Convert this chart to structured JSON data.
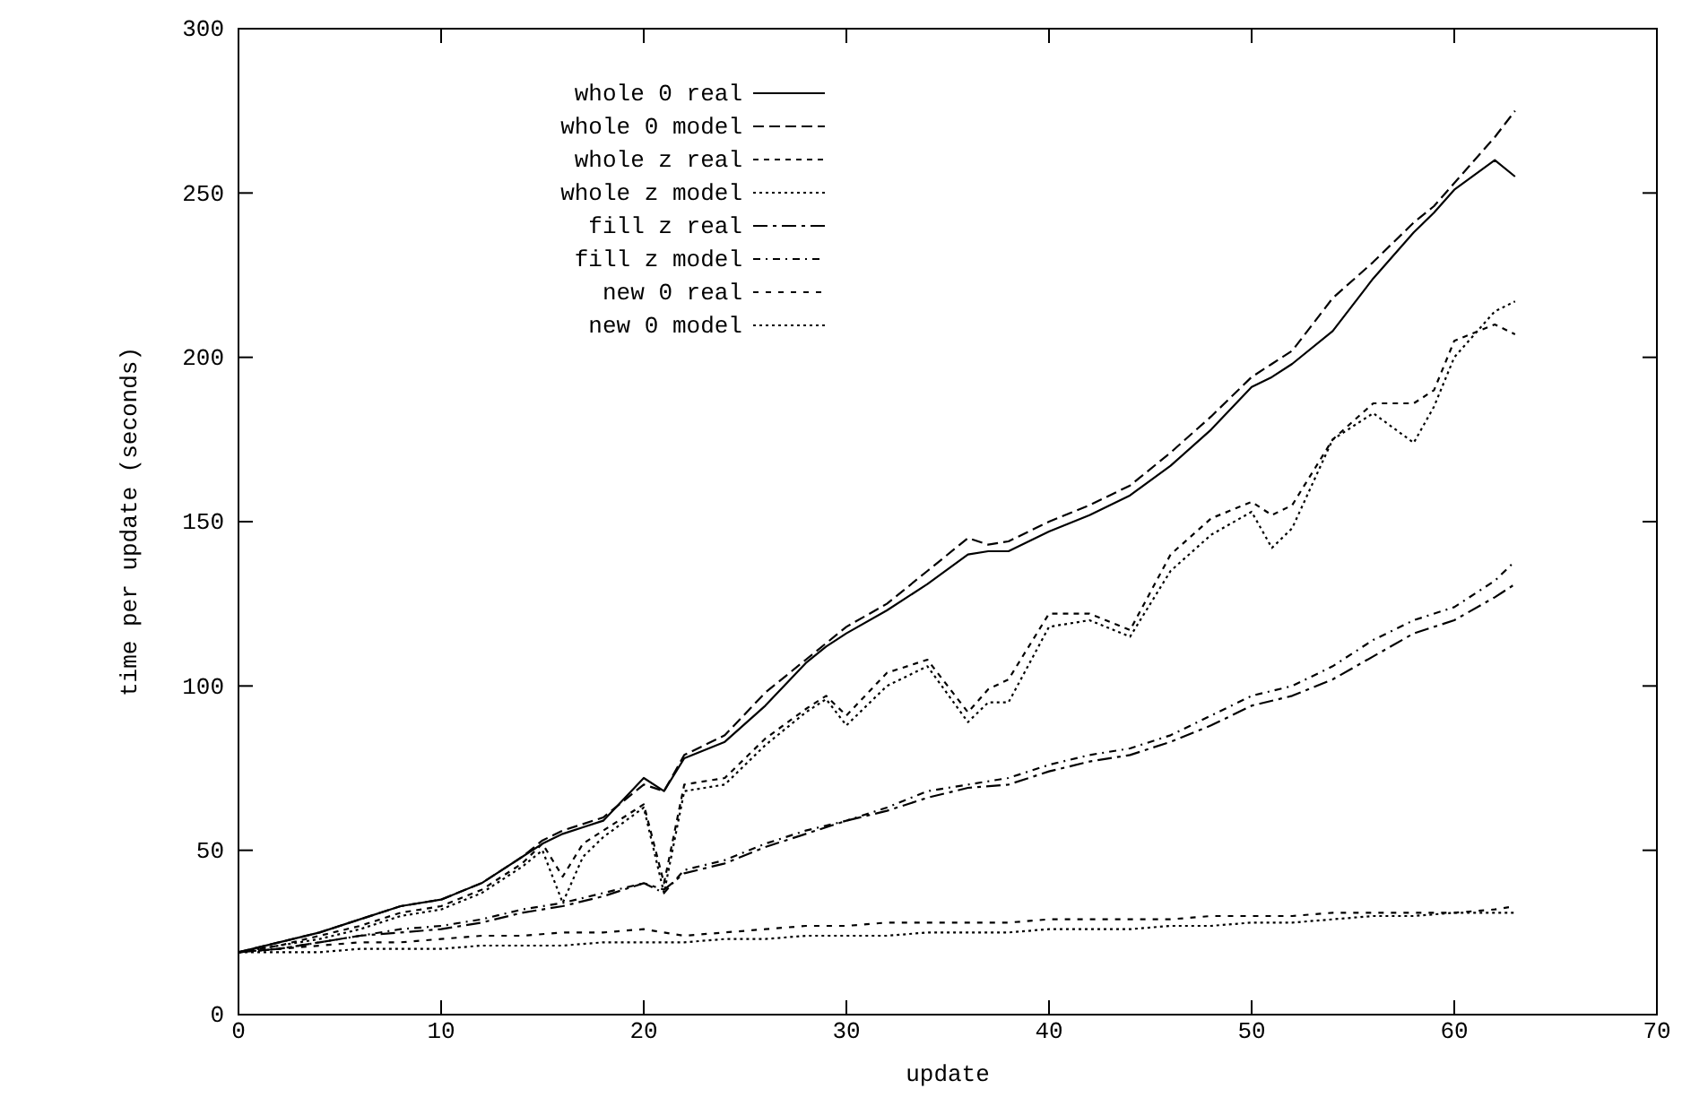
{
  "chart_data": {
    "type": "line",
    "xlabel": "update",
    "ylabel": "time per update (seconds)",
    "xlim": [
      0,
      70
    ],
    "ylim": [
      0,
      300
    ],
    "xticks": [
      0,
      10,
      20,
      30,
      40,
      50,
      60,
      70
    ],
    "yticks": [
      0,
      50,
      100,
      150,
      200,
      250,
      300
    ],
    "grid": false,
    "legend": "top left",
    "marker": "none",
    "series": [
      {
        "name": "whole 0 real",
        "color": "#000000",
        "line_style": "solid",
        "x": [
          0,
          2,
          4,
          6,
          8,
          10,
          12,
          14,
          15,
          16,
          17,
          18,
          20,
          21,
          22,
          24,
          26,
          28,
          29,
          30,
          32,
          34,
          36,
          37,
          38,
          40,
          42,
          44,
          46,
          48,
          50,
          51,
          52,
          54,
          56,
          58,
          59,
          60,
          62,
          63
        ],
        "values": [
          19,
          22,
          25,
          29,
          33,
          35,
          40,
          48,
          52,
          55,
          57,
          59,
          72,
          68,
          78,
          83,
          94,
          107,
          112,
          116,
          123,
          131,
          140,
          141,
          141,
          147,
          152,
          158,
          167,
          178,
          191,
          194,
          198,
          208,
          224,
          238,
          244,
          251,
          260,
          255
        ]
      },
      {
        "name": "whole 0 model",
        "color": "#000000",
        "line_style": "dashed",
        "x": [
          0,
          2,
          4,
          6,
          8,
          10,
          12,
          14,
          15,
          16,
          17,
          18,
          20,
          21,
          22,
          24,
          26,
          28,
          29,
          30,
          32,
          34,
          36,
          37,
          38,
          40,
          42,
          44,
          46,
          48,
          50,
          51,
          52,
          54,
          56,
          58,
          59,
          60,
          62,
          63
        ],
        "values": [
          19,
          22,
          25,
          29,
          33,
          35,
          40,
          48,
          53,
          56,
          58,
          60,
          70,
          68,
          79,
          85,
          98,
          108,
          113,
          118,
          125,
          135,
          145,
          143,
          144,
          150,
          155,
          161,
          171,
          182,
          194,
          198,
          202,
          218,
          229,
          241,
          246,
          253,
          267,
          275
        ]
      },
      {
        "name": "whole z real",
        "color": "#000000",
        "line_style": "dashed",
        "x": [
          0,
          2,
          4,
          6,
          8,
          10,
          12,
          14,
          15,
          16,
          17,
          18,
          20,
          21,
          22,
          24,
          26,
          28,
          29,
          30,
          32,
          34,
          36,
          37,
          38,
          40,
          42,
          44,
          46,
          48,
          50,
          51,
          52,
          54,
          56,
          58,
          59,
          60,
          62,
          63
        ],
        "values": [
          19,
          21,
          24,
          27,
          31,
          33,
          38,
          46,
          52,
          42,
          52,
          56,
          64,
          40,
          70,
          72,
          84,
          93,
          97,
          91,
          104,
          108,
          92,
          99,
          102,
          122,
          122,
          117,
          140,
          151,
          156,
          152,
          155,
          175,
          186,
          186,
          190,
          205,
          210,
          207
        ]
      },
      {
        "name": "whole z model",
        "color": "#000000",
        "line_style": "dotted",
        "x": [
          0,
          2,
          4,
          6,
          8,
          10,
          12,
          14,
          15,
          16,
          17,
          18,
          20,
          21,
          22,
          24,
          26,
          28,
          29,
          30,
          32,
          34,
          36,
          37,
          38,
          40,
          42,
          44,
          46,
          48,
          50,
          51,
          52,
          54,
          56,
          58,
          59,
          60,
          62,
          63
        ],
        "values": [
          19,
          21,
          23,
          26,
          30,
          32,
          37,
          45,
          50,
          34,
          48,
          54,
          63,
          37,
          68,
          70,
          82,
          92,
          96,
          88,
          100,
          106,
          89,
          95,
          95,
          118,
          120,
          115,
          135,
          146,
          153,
          142,
          148,
          175,
          183,
          174,
          185,
          200,
          214,
          217
        ]
      },
      {
        "name": "fill z real",
        "color": "#000000",
        "line_style": "dashed",
        "x": [
          0,
          2,
          4,
          6,
          8,
          10,
          12,
          14,
          16,
          18,
          20,
          21,
          22,
          24,
          26,
          28,
          30,
          32,
          34,
          36,
          38,
          40,
          42,
          44,
          46,
          48,
          50,
          52,
          54,
          56,
          58,
          60,
          62,
          63
        ],
        "values": [
          19,
          20,
          22,
          24,
          25,
          26,
          28,
          31,
          33,
          36,
          40,
          38,
          43,
          46,
          51,
          55,
          59,
          62,
          66,
          69,
          70,
          74,
          77,
          79,
          83,
          88,
          94,
          97,
          102,
          109,
          116,
          120,
          127,
          131
        ]
      },
      {
        "name": "fill z model",
        "color": "#000000",
        "line_style": "dashed",
        "x": [
          0,
          2,
          4,
          6,
          8,
          10,
          12,
          14,
          16,
          18,
          20,
          21,
          22,
          24,
          26,
          28,
          30,
          32,
          34,
          36,
          38,
          40,
          42,
          44,
          46,
          48,
          50,
          52,
          54,
          56,
          58,
          60,
          62,
          63
        ],
        "values": [
          19,
          20,
          22,
          24,
          26,
          27,
          29,
          32,
          34,
          37,
          40,
          37,
          44,
          47,
          52,
          56,
          59,
          63,
          68,
          70,
          72,
          76,
          79,
          81,
          85,
          91,
          97,
          100,
          106,
          114,
          120,
          124,
          132,
          138
        ]
      },
      {
        "name": "new 0 real",
        "color": "#000000",
        "line_style": "dashed",
        "x": [
          0,
          2,
          4,
          6,
          8,
          10,
          12,
          14,
          16,
          18,
          20,
          22,
          24,
          26,
          28,
          30,
          32,
          34,
          36,
          38,
          40,
          42,
          44,
          46,
          48,
          50,
          52,
          54,
          56,
          58,
          60,
          62,
          63
        ],
        "values": [
          19,
          20,
          21,
          22,
          22,
          23,
          24,
          24,
          25,
          25,
          26,
          24,
          25,
          26,
          27,
          27,
          28,
          28,
          28,
          28,
          29,
          29,
          29,
          29,
          30,
          30,
          30,
          31,
          31,
          31,
          31,
          32,
          33
        ]
      },
      {
        "name": "new 0 model",
        "color": "#000000",
        "line_style": "dotted",
        "x": [
          0,
          2,
          4,
          6,
          8,
          10,
          12,
          14,
          16,
          18,
          20,
          22,
          24,
          26,
          28,
          30,
          32,
          34,
          36,
          38,
          40,
          42,
          44,
          46,
          48,
          50,
          52,
          54,
          56,
          58,
          60,
          62,
          63
        ],
        "values": [
          19,
          19,
          19,
          20,
          20,
          20,
          21,
          21,
          21,
          22,
          22,
          22,
          23,
          23,
          24,
          24,
          24,
          25,
          25,
          25,
          26,
          26,
          26,
          27,
          27,
          28,
          28,
          29,
          30,
          30,
          31,
          31,
          31
        ]
      }
    ]
  }
}
